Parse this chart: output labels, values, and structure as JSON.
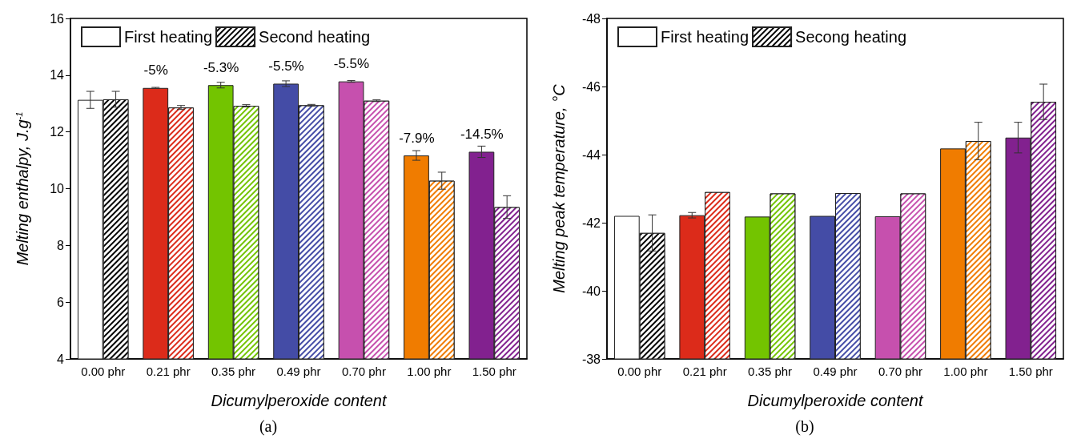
{
  "chart_data": [
    {
      "type": "bar",
      "xlabel": "Dicumylperoxide content",
      "ylabel": "Melting enthalpy, J.g$^{-1}$",
      "categories": [
        "0.00 phr",
        "0.21 phr",
        "0.35 phr",
        "0.49 phr",
        "0.70 phr",
        "1.00 phr",
        "1.50 phr"
      ],
      "series": [
        {
          "name": "First heating",
          "color": "#ffffff",
          "colors": [
            "#ffffff",
            "#dc2b1a",
            "#73c400",
            "#444ca6",
            "#c650ae",
            "#f07c00",
            "#82218f"
          ],
          "values": [
            13.13,
            13.55,
            13.65,
            13.7,
            13.78,
            11.17,
            11.3
          ],
          "errors": [
            0.3,
            0.02,
            0.1,
            0.1,
            0.03,
            0.17,
            0.2
          ]
        },
        {
          "name": "Second heating",
          "color": "#000000",
          "colors": [
            "#000000",
            "#dc2b1a",
            "#73c400",
            "#444ca6",
            "#c650ae",
            "#f07c00",
            "#82218f"
          ],
          "values": [
            13.15,
            12.86,
            12.92,
            12.94,
            13.1,
            10.28,
            9.35
          ],
          "errors": [
            0.28,
            0.07,
            0.04,
            0.03,
            0.03,
            0.3,
            0.4
          ]
        }
      ],
      "ylim": [
        4,
        16
      ],
      "yticks": [
        4,
        6,
        8,
        10,
        12,
        14,
        16
      ],
      "grid": false,
      "legend": "top left",
      "annotations": [
        {
          "text": "-5%",
          "x": "0.21 phr",
          "y": 13.55
        },
        {
          "text": "-5.3%",
          "x": "0.35 phr",
          "y": 13.65
        },
        {
          "text": "-5.5%",
          "x": "0.49 phr",
          "y": 13.7
        },
        {
          "text": "-5.5%",
          "x": "0.70 phr",
          "y": 13.78
        },
        {
          "text": "-7.9%",
          "x": "1.00 phr",
          "y": 11.17
        },
        {
          "text": "-14.5%",
          "x": "1.50 phr",
          "y": 11.3
        },
        "(a)"
      ]
    },
    {
      "type": "bar",
      "xlabel": "Dicumylperoxide content",
      "ylabel": "Melting peak temperature, °C",
      "categories": [
        "0.00 phr",
        "0.21 phr",
        "0.35 phr",
        "0.49 phr",
        "0.70 phr",
        "1.00 phr",
        "1.50 phr"
      ],
      "series": [
        {
          "name": "First heating",
          "color": "#ffffff",
          "colors": [
            "#ffffff",
            "#dc2b1a",
            "#73c400",
            "#444ca6",
            "#c650ae",
            "#f07c00",
            "#82218f"
          ],
          "values": [
            -42.2,
            -42.22,
            -42.18,
            -42.2,
            -42.19,
            -44.18,
            -44.5
          ],
          "errors": [
            null,
            0.08,
            null,
            null,
            null,
            null,
            0.45
          ]
        },
        {
          "name": "Secong heating",
          "color": "#000000",
          "colors": [
            "#000000",
            "#dc2b1a",
            "#73c400",
            "#444ca6",
            "#c650ae",
            "#f07c00",
            "#82218f"
          ],
          "values": [
            -41.7,
            -42.9,
            -42.86,
            -42.87,
            -42.86,
            -44.4,
            -45.55
          ],
          "errors": [
            0.53,
            null,
            null,
            null,
            null,
            0.55,
            0.52
          ]
        }
      ],
      "ylim": [
        -38,
        -48
      ],
      "yticks": [
        -38,
        -40,
        -42,
        -44,
        -46,
        -48
      ],
      "grid": false,
      "legend": "top left",
      "annotations": [
        "(b)"
      ]
    }
  ]
}
